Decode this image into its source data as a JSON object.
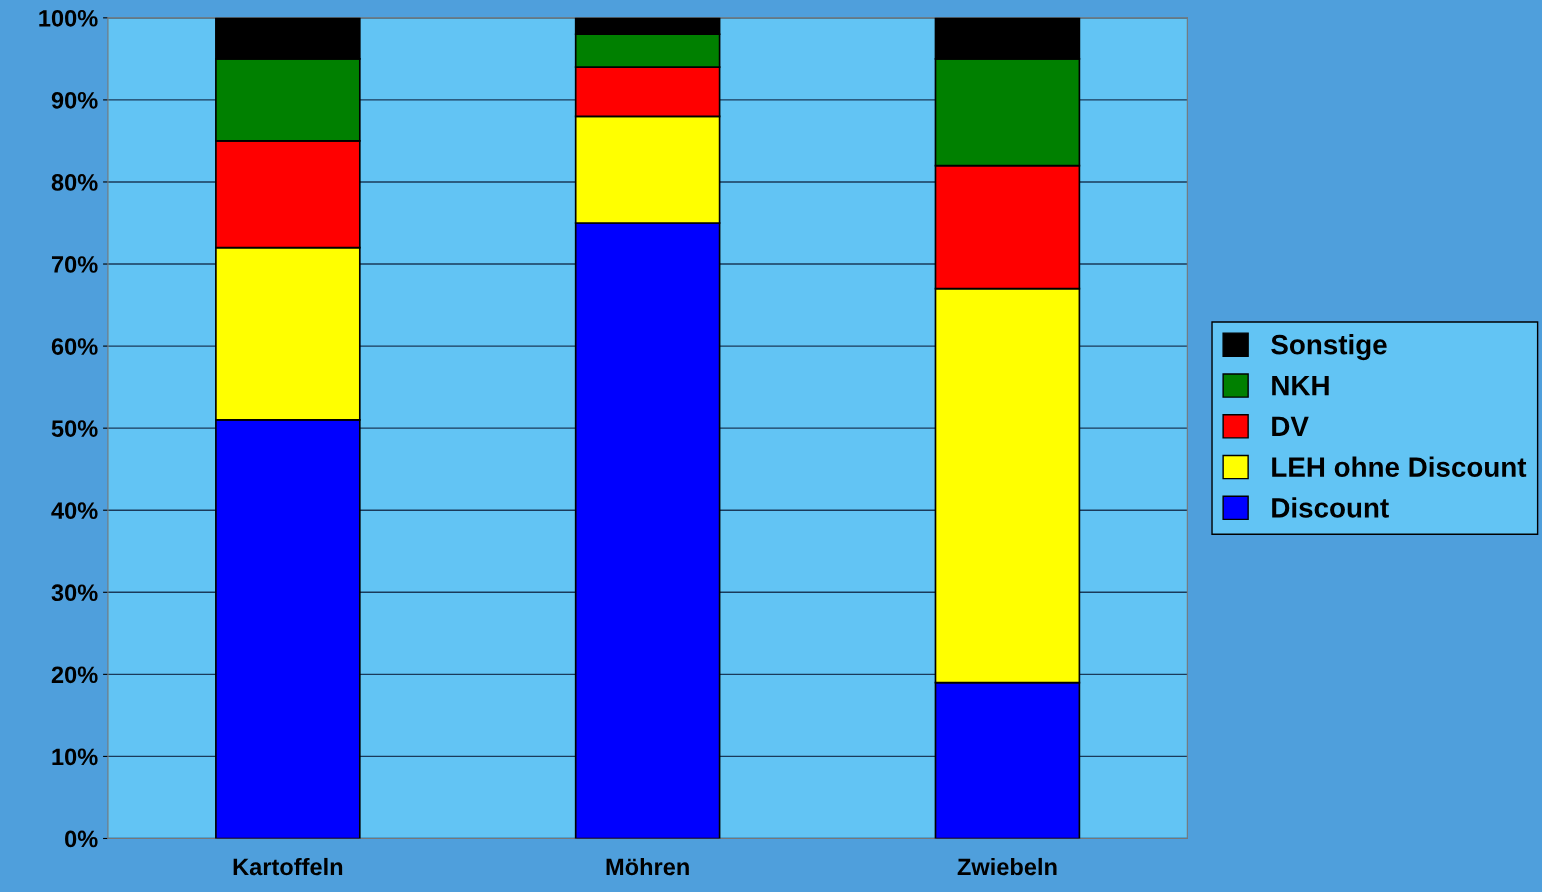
{
  "chart_data": {
    "type": "bar",
    "stacked": true,
    "categories": [
      "Kartoffeln",
      "Möhren",
      "Zwiebeln"
    ],
    "series": [
      {
        "name": "Discount",
        "color": "#0000ff",
        "values": [
          51,
          75,
          19
        ]
      },
      {
        "name": "LEH ohne Discount",
        "color": "#ffff00",
        "values": [
          21,
          13,
          48
        ]
      },
      {
        "name": "DV",
        "color": "#ff0000",
        "values": [
          13,
          6,
          15
        ]
      },
      {
        "name": "NKH",
        "color": "#008000",
        "values": [
          10,
          4,
          13
        ]
      },
      {
        "name": "Sonstige",
        "color": "#000000",
        "values": [
          5,
          2,
          5
        ]
      }
    ],
    "ylim": [
      0,
      100
    ],
    "yticks": [
      {
        "value": 0,
        "label": "0%"
      },
      {
        "value": 10,
        "label": "10%"
      },
      {
        "value": 20,
        "label": "20%"
      },
      {
        "value": 30,
        "label": "30%"
      },
      {
        "value": 40,
        "label": "40%"
      },
      {
        "value": 50,
        "label": "50%"
      },
      {
        "value": 60,
        "label": "60%"
      },
      {
        "value": 70,
        "label": "70%"
      },
      {
        "value": 80,
        "label": "80%"
      },
      {
        "value": 90,
        "label": "90%"
      },
      {
        "value": 100,
        "label": "100%"
      }
    ],
    "grid": "y",
    "legend": "right"
  }
}
